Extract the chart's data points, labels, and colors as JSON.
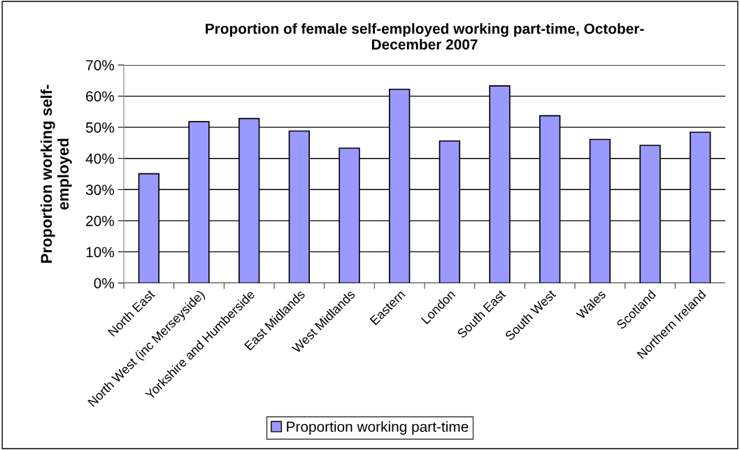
{
  "chart_data": {
    "type": "bar",
    "title": "Proportion of female self-employed working part-time, October-\nDecember 2007",
    "ylabel": "Proportion working self-\nemployed",
    "categories": [
      "North East",
      "North West (inc Merseyside)",
      "Yorkshire and Humberside",
      "East Midlands",
      "West Midlands",
      "Eastern",
      "London",
      "South East",
      "South West",
      "Wales",
      "Scotland",
      "Northern Ireland"
    ],
    "series": [
      {
        "name": "Proportion working part-time",
        "color": "#9999ff",
        "values": [
          35.1,
          51.8,
          52.8,
          48.8,
          43.3,
          62.2,
          45.6,
          63.3,
          53.7,
          46.1,
          44.2,
          48.4
        ]
      }
    ],
    "ylim": [
      0,
      70
    ],
    "yticks": [
      {
        "value": 0,
        "label": "0%"
      },
      {
        "value": 10,
        "label": "10%"
      },
      {
        "value": 20,
        "label": "20%"
      },
      {
        "value": 30,
        "label": "30%"
      },
      {
        "value": 40,
        "label": "40%"
      },
      {
        "value": 50,
        "label": "50%"
      },
      {
        "value": 60,
        "label": "60%"
      },
      {
        "value": 70,
        "label": "70%"
      }
    ],
    "grid": "y",
    "legend": "bottom"
  }
}
